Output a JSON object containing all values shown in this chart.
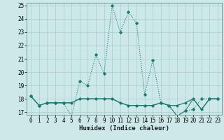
{
  "xlabel": "Humidex (Indice chaleur)",
  "x": [
    0,
    1,
    2,
    3,
    4,
    5,
    6,
    7,
    8,
    9,
    10,
    11,
    12,
    13,
    14,
    15,
    16,
    17,
    18,
    19,
    20,
    21,
    22,
    23
  ],
  "line1": [
    18.2,
    17.5,
    17.7,
    17.7,
    17.7,
    16.7,
    19.3,
    19.0,
    21.3,
    19.9,
    25.0,
    23.0,
    24.5,
    23.7,
    18.3,
    20.9,
    17.7,
    17.5,
    16.7,
    17.1,
    17.2,
    18.0,
    18.0,
    18.0
  ],
  "line2": [
    18.2,
    17.5,
    17.7,
    17.7,
    17.7,
    17.7,
    18.0,
    18.0,
    18.0,
    18.0,
    18.0,
    17.7,
    17.5,
    17.5,
    17.5,
    17.5,
    17.7,
    17.5,
    17.5,
    17.7,
    18.0,
    17.2,
    18.0,
    18.0
  ],
  "line3": [
    18.2,
    17.5,
    17.7,
    17.7,
    17.7,
    17.7,
    18.0,
    18.0,
    18.0,
    18.0,
    18.0,
    17.7,
    17.5,
    17.5,
    17.5,
    17.5,
    17.7,
    17.5,
    16.7,
    17.1,
    18.0,
    17.2,
    18.0,
    18.0
  ],
  "line_color": "#1a7a6e",
  "bg_color": "#cce8e8",
  "grid_color": "#aacccc",
  "ylim_min": 17,
  "ylim_max": 25,
  "yticks": [
    17,
    18,
    19,
    20,
    21,
    22,
    23,
    24,
    25
  ],
  "xticks": [
    0,
    1,
    2,
    3,
    4,
    5,
    6,
    7,
    8,
    9,
    10,
    11,
    12,
    13,
    14,
    15,
    16,
    17,
    18,
    19,
    20,
    21,
    22,
    23
  ],
  "xlabel_fontsize": 6.5,
  "tick_fontsize": 5.5
}
